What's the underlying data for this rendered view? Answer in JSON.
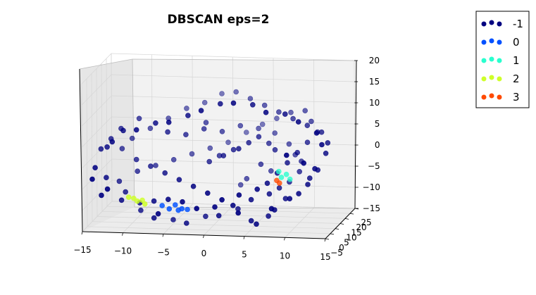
{
  "chart_data": {
    "type": "scatter",
    "title": "DBSCAN eps=2",
    "projection": "3d",
    "xlim": [
      -15,
      15
    ],
    "ylim": [
      -5,
      25
    ],
    "zlim": [
      -15,
      20
    ],
    "x_ticks": [
      "−15",
      "−10",
      "−5",
      "0",
      "5",
      "10",
      "15"
    ],
    "y_ticks": [
      "−5",
      "0",
      "5",
      "10",
      "15",
      "20",
      "25"
    ],
    "z_ticks": [
      "−15",
      "−10",
      "−5",
      "0",
      "5",
      "10",
      "15",
      "20"
    ],
    "grid": true,
    "legend": {
      "placement": "top-right",
      "entries": [
        {
          "label": "-1",
          "color": "#000080"
        },
        {
          "label": "0",
          "color": "#0050ff"
        },
        {
          "label": "1",
          "color": "#29ffce"
        },
        {
          "label": "2",
          "color": "#ceff29"
        },
        {
          "label": "3",
          "color": "#ff4a00"
        }
      ]
    },
    "series": [
      {
        "label": "-1",
        "color": "#000080",
        "points": [
          [
            -14,
            0,
            -1
          ],
          [
            -13,
            3,
            -4
          ],
          [
            -13,
            -2,
            -7
          ],
          [
            -11,
            2,
            -9
          ],
          [
            -9,
            5,
            -12
          ],
          [
            -7,
            2,
            -13
          ],
          [
            -5,
            5,
            -14
          ],
          [
            -3,
            2,
            -14
          ],
          [
            -1,
            5,
            -13
          ],
          [
            1,
            2,
            -12
          ],
          [
            3,
            5,
            -11
          ],
          [
            5,
            2,
            -13
          ],
          [
            6,
            -1,
            -13
          ],
          [
            7,
            3,
            -12
          ],
          [
            8,
            1,
            -10
          ],
          [
            9,
            4,
            -8
          ],
          [
            11,
            1,
            -6
          ],
          [
            12,
            4,
            -3
          ],
          [
            13,
            1,
            0
          ],
          [
            14,
            4,
            3
          ],
          [
            14,
            0,
            6
          ],
          [
            13,
            3,
            8
          ],
          [
            11,
            1,
            11
          ],
          [
            9,
            4,
            12
          ],
          [
            7,
            1,
            13
          ],
          [
            5,
            4,
            14
          ],
          [
            3,
            1,
            15
          ],
          [
            1,
            4,
            14
          ],
          [
            -1,
            1,
            13
          ],
          [
            -3,
            4,
            11
          ],
          [
            -5,
            1,
            10
          ],
          [
            -7,
            4,
            9
          ],
          [
            -9,
            1,
            8
          ],
          [
            -11,
            4,
            7
          ],
          [
            -12,
            1,
            5
          ],
          [
            -13,
            4,
            3
          ],
          [
            -6,
            8,
            6
          ],
          [
            -4,
            10,
            5
          ],
          [
            -2,
            12,
            6
          ],
          [
            0,
            14,
            5
          ],
          [
            2,
            16,
            6
          ],
          [
            4,
            18,
            5
          ],
          [
            6,
            18,
            4
          ],
          [
            8,
            16,
            2
          ],
          [
            9,
            14,
            0
          ],
          [
            10,
            12,
            -1
          ],
          [
            10,
            10,
            -3
          ],
          [
            9,
            8,
            -5
          ],
          [
            8,
            6,
            -6
          ],
          [
            7,
            4,
            -7
          ],
          [
            5,
            2,
            -8
          ],
          [
            3,
            0,
            -9
          ],
          [
            1,
            -2,
            -9
          ],
          [
            -1,
            -4,
            -9
          ],
          [
            -3,
            -2,
            -8
          ],
          [
            -5,
            0,
            -8
          ],
          [
            -7,
            2,
            -9
          ],
          [
            -9,
            4,
            -10
          ],
          [
            -11,
            6,
            -8
          ],
          [
            -12,
            8,
            -6
          ],
          [
            -10,
            10,
            -4
          ],
          [
            -8,
            12,
            -3
          ],
          [
            -6,
            14,
            -2
          ],
          [
            -4,
            16,
            -1
          ],
          [
            -2,
            18,
            0
          ],
          [
            0,
            20,
            1
          ],
          [
            2,
            22,
            3
          ],
          [
            4,
            22,
            5
          ],
          [
            6,
            20,
            7
          ],
          [
            8,
            18,
            9
          ],
          [
            10,
            16,
            10
          ],
          [
            11,
            14,
            8
          ],
          [
            12,
            12,
            6
          ],
          [
            11,
            10,
            4
          ],
          [
            10,
            8,
            2
          ],
          [
            9,
            6,
            0
          ],
          [
            8,
            4,
            -2
          ],
          [
            7,
            2,
            -4
          ],
          [
            6,
            0,
            -5
          ],
          [
            4,
            -2,
            -6
          ],
          [
            2,
            -3,
            -7
          ],
          [
            0,
            -1,
            -6
          ],
          [
            -2,
            1,
            -5
          ],
          [
            -4,
            3,
            -4
          ],
          [
            -6,
            5,
            -3
          ],
          [
            -8,
            7,
            -2
          ],
          [
            -10,
            9,
            -1
          ],
          [
            -12,
            11,
            1
          ],
          [
            -11,
            13,
            3
          ],
          [
            -9,
            15,
            5
          ],
          [
            -7,
            17,
            7
          ],
          [
            -5,
            19,
            9
          ],
          [
            -3,
            21,
            10
          ],
          [
            -1,
            22,
            12
          ],
          [
            1,
            20,
            13
          ],
          [
            3,
            18,
            12
          ],
          [
            5,
            16,
            11
          ],
          [
            7,
            14,
            10
          ],
          [
            9,
            12,
            9
          ],
          [
            11,
            10,
            8
          ],
          [
            13,
            8,
            7
          ],
          [
            14,
            6,
            5
          ],
          [
            13,
            4,
            -1
          ],
          [
            12,
            2,
            -4
          ],
          [
            10,
            0,
            -7
          ],
          [
            8,
            -2,
            -9
          ],
          [
            -14,
            6,
            2
          ],
          [
            -13,
            8,
            4
          ],
          [
            -12,
            10,
            6
          ],
          [
            -10,
            12,
            8
          ],
          [
            3,
            6,
            3
          ],
          [
            4,
            8,
            4
          ],
          [
            5,
            10,
            5
          ],
          [
            2,
            9,
            2
          ],
          [
            1,
            7,
            1
          ],
          [
            0,
            11,
            0
          ],
          [
            -1,
            9,
            -1
          ],
          [
            6,
            12,
            3
          ],
          [
            7,
            10,
            2
          ],
          [
            -2,
            14,
            7
          ],
          [
            4,
            -3,
            -10
          ],
          [
            -6,
            -2,
            -11
          ],
          [
            10,
            -3,
            4
          ],
          [
            12,
            -2,
            2
          ],
          [
            -14,
            -3,
            -3
          ],
          [
            -12,
            -4,
            -5
          ],
          [
            5,
            12,
            -2
          ],
          [
            6,
            14,
            -4
          ],
          [
            3,
            14,
            -6
          ],
          [
            2,
            16,
            -8
          ]
        ]
      },
      {
        "label": "0",
        "color": "#0050ff",
        "points": [
          [
            -6,
            2,
            -10
          ],
          [
            -5,
            1,
            -10.5
          ],
          [
            -4.5,
            3,
            -10
          ],
          [
            -4,
            2,
            -11
          ],
          [
            -3.5,
            1.5,
            -10.5
          ],
          [
            -3,
            3,
            -11
          ]
        ]
      },
      {
        "label": "1",
        "color": "#29ffce",
        "points": [
          [
            8.5,
            4,
            -3
          ],
          [
            9,
            5,
            -2.5
          ],
          [
            9.5,
            4.5,
            -3.5
          ],
          [
            8,
            5.5,
            -2
          ]
        ]
      },
      {
        "label": "2",
        "color": "#ceff29",
        "points": [
          [
            -10,
            1,
            -8
          ],
          [
            -9.5,
            2,
            -8.5
          ],
          [
            -9,
            1.5,
            -9
          ],
          [
            -8.5,
            2.5,
            -9
          ],
          [
            -8,
            1,
            -9.5
          ]
        ]
      },
      {
        "label": "3",
        "color": "#ff4a00",
        "points": [
          [
            7.8,
            5,
            -4
          ],
          [
            8.2,
            4.5,
            -4.5
          ]
        ]
      }
    ]
  }
}
